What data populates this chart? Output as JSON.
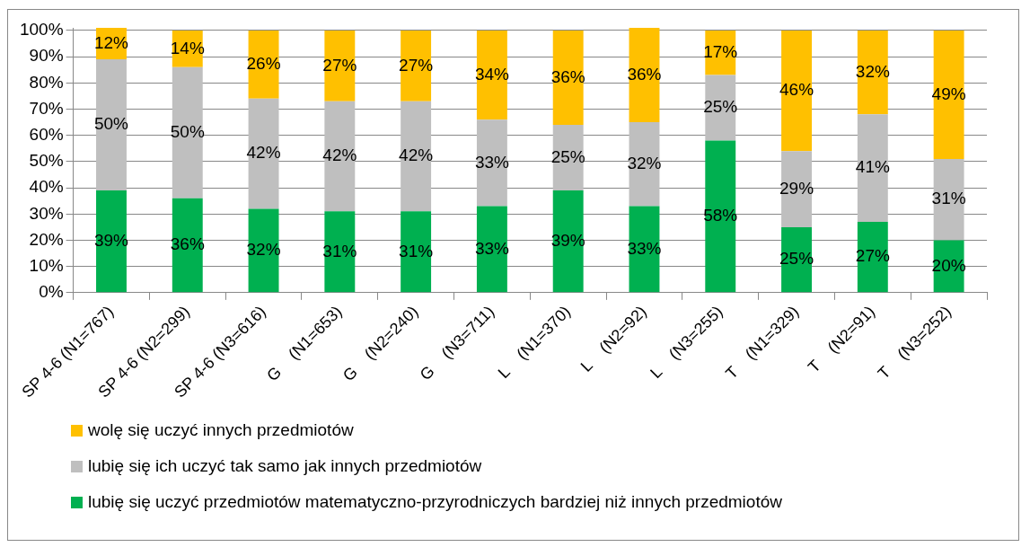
{
  "chart_data": {
    "type": "bar",
    "stacked": true,
    "categories": [
      "SP 4-6 (N1=767)",
      "SP 4-6 (N2=299)",
      "SP 4-6 (N3=616)",
      "G    (N1=653)",
      "G    (N2=240)",
      "G    (N3=711)",
      "L    (N1=370)",
      "L    (N2=92)",
      "L    (N3=255)",
      "T    (N1=329)",
      "T    (N2=91)",
      "T    (N3=252)"
    ],
    "series": [
      {
        "name": "lubię się uczyć przedmiotów matematyczno-przyrodniczych bardziej niż innych przedmiotów",
        "color": "#00b050",
        "values": [
          39,
          36,
          32,
          31,
          31,
          33,
          39,
          33,
          58,
          25,
          27,
          20
        ],
        "value_labels": [
          "39%",
          "36%",
          "32%",
          "31%",
          "31%",
          "33%",
          "39%",
          "33%",
          "58%",
          "25%",
          "27%",
          "20%"
        ]
      },
      {
        "name": "lubię się ich uczyć tak samo jak innych przedmiotów",
        "color": "#bfbfbf",
        "values": [
          50,
          50,
          42,
          42,
          42,
          33,
          25,
          32,
          25,
          29,
          41,
          31
        ],
        "value_labels": [
          "50%",
          "50%",
          "42%",
          "42%",
          "42%",
          "33%",
          "25%",
          "32%",
          "25%",
          "29%",
          "41%",
          "31%"
        ]
      },
      {
        "name": "wolę się uczyć innych przedmiotów",
        "color": "#ffc000",
        "values": [
          12,
          14,
          26,
          27,
          27,
          34,
          36,
          36,
          17,
          46,
          32,
          49
        ],
        "value_labels": [
          "12%",
          "14%",
          "26%",
          "27%",
          "27%",
          "34%",
          "36%",
          "36%",
          "17%",
          "46%",
          "32%",
          "49%"
        ]
      }
    ],
    "ylim": [
      0,
      101
    ],
    "yticks": [
      {
        "value": 0,
        "label": "0%"
      },
      {
        "value": 10,
        "label": "10%"
      },
      {
        "value": 20,
        "label": "20%"
      },
      {
        "value": 30,
        "label": "30%"
      },
      {
        "value": 40,
        "label": "40%"
      },
      {
        "value": 50,
        "label": "50%"
      },
      {
        "value": 60,
        "label": "60%"
      },
      {
        "value": 70,
        "label": "70%"
      },
      {
        "value": 80,
        "label": "80%"
      },
      {
        "value": 90,
        "label": "90%"
      },
      {
        "value": 100,
        "label": "100%"
      }
    ],
    "grid": "y",
    "legend": "bottom"
  }
}
